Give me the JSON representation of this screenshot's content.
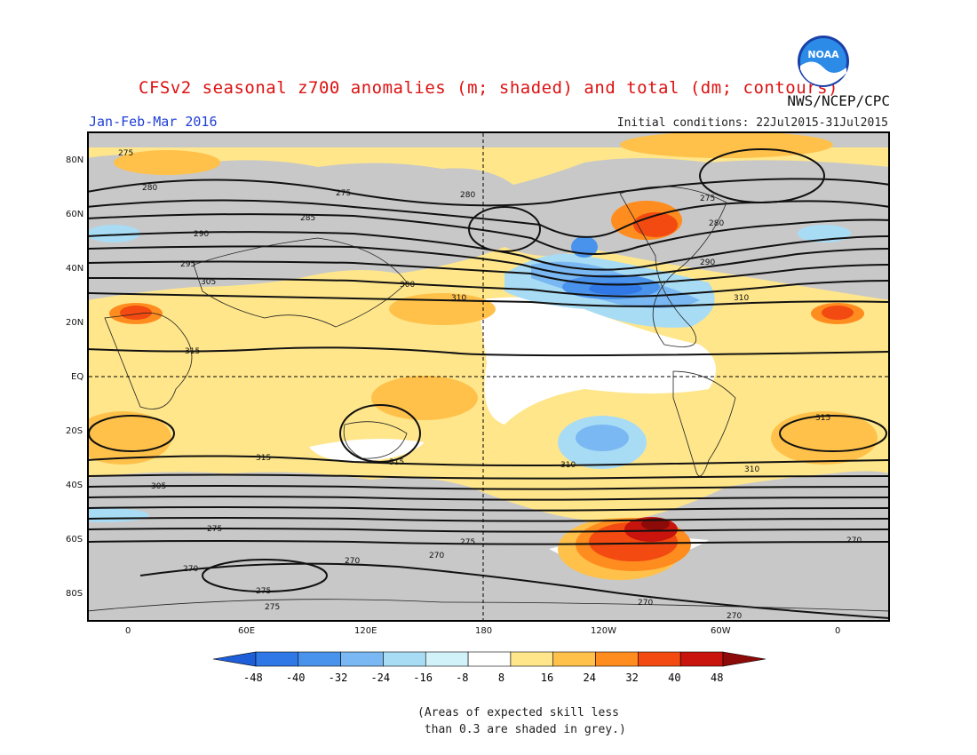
{
  "header": {
    "title": "CFSv2 seasonal z700 anomalies (m; shaded) and total (dm; contours)",
    "period": "Jan-Feb-Mar 2016",
    "initial_conditions": "Initial conditions: 22Jul2015-31Jul2015",
    "agency": "NWS/NCEP/CPC",
    "logo_text": "NOAA"
  },
  "axes": {
    "lat_labels": [
      "80N",
      "60N",
      "40N",
      "20N",
      "EQ",
      "20S",
      "40S",
      "60S",
      "80S"
    ],
    "lon_labels": [
      "0",
      "60E",
      "120E",
      "180",
      "120W",
      "60W",
      "0"
    ]
  },
  "contour_labels": [
    "275",
    "280",
    "285",
    "290",
    "295",
    "300",
    "305",
    "310",
    "315",
    "270"
  ],
  "colorbar": {
    "labels": [
      "-48",
      "-40",
      "-32",
      "-24",
      "-16",
      "-8",
      "8",
      "16",
      "24",
      "32",
      "40",
      "48"
    ],
    "colors": [
      "#1e5ed8",
      "#2f78e6",
      "#4a93ec",
      "#79b8f2",
      "#a8dcf5",
      "#d2f2fa",
      "#ffffff",
      "#ffe68a",
      "#ffc14a",
      "#ff8c1e",
      "#f24a10",
      "#c8140c",
      "#8c0a08"
    ]
  },
  "footnote": "(Areas of expected skill less\n than 0.3 are shaded in grey.)",
  "colors": {
    "title": "#dd1111",
    "period": "#1f3fd6",
    "grey": "#c8c8c8"
  }
}
